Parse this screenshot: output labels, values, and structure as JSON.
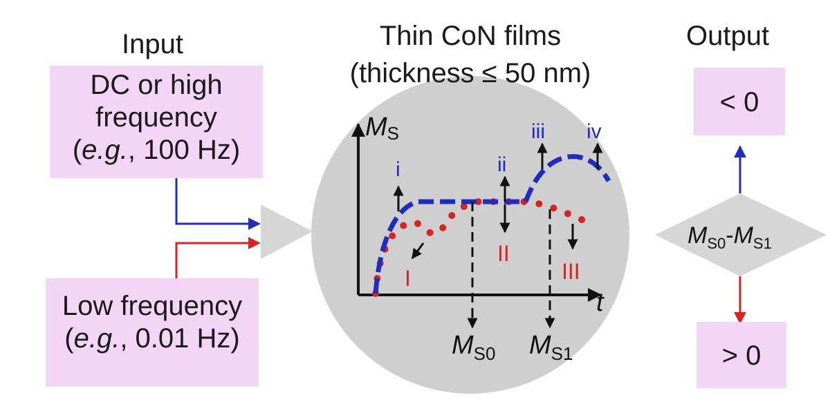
{
  "input": {
    "title": "Input",
    "dc_line1": "DC or high",
    "dc_line2": "frequency",
    "dc_eg": "e.g.",
    "dc_value": ", 100 Hz)",
    "low_line1": "Low frequency",
    "low_eg": "e.g.",
    "low_value": ", 0.01 Hz)"
  },
  "center": {
    "title_line1": "Thin CoN films",
    "title_line2": "(thickness ≤ 50 nm)"
  },
  "plot": {
    "y_label_main": "M",
    "y_label_sub": "S",
    "x_label": "t",
    "blue_markers": [
      "i",
      "ii",
      "iii",
      "iv"
    ],
    "red_markers": [
      "I",
      "II",
      "III"
    ],
    "ms0_main": "M",
    "ms0_sub": "S0",
    "ms1_main": "M",
    "ms1_sub": "S1"
  },
  "output": {
    "title": "Output",
    "upper": "< 0",
    "lower": "> 0",
    "diamond_a": "M",
    "diamond_a_sub": "S0",
    "diamond_dash": "-",
    "diamond_b": "M",
    "diamond_b_sub": "S1"
  },
  "colors": {
    "pink_box": "#f3d6f5",
    "blue": "#1f2dbf",
    "red": "#d9231f",
    "grey_circle": "#cfcfcf",
    "grey_shape": "#d6d6d6"
  }
}
